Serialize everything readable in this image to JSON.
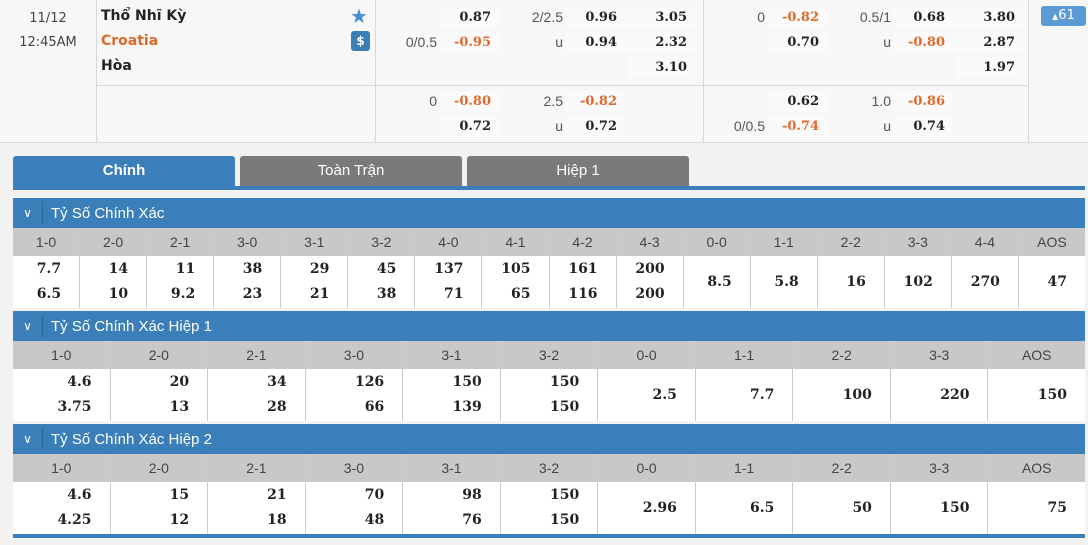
{
  "match": {
    "date": "11/12",
    "time": "12:45AM",
    "home": "Thổ Nhĩ Kỳ",
    "away": "Croatia",
    "draw": "Hòa",
    "more_count": "61"
  },
  "colors": {
    "accent": "#3a7fba",
    "negative": "#e0692a",
    "tab_inactive": "#7a7a7a"
  },
  "icons": {
    "favorite": "star-icon",
    "bet": "dollar-icon",
    "expand": "triangle-up-icon",
    "collapse": "chevron-down-icon"
  },
  "odds": {
    "ft_main": {
      "hdp_line": "0/0.5",
      "hdp_home": "0.87",
      "hdp_away": "-0.95",
      "ou_line": "2/2.5",
      "ou_over": "0.96",
      "ou_under_label": "u",
      "ou_under": "0.94",
      "x1": "3.05",
      "x2": "2.32",
      "xd": "3.10"
    },
    "ft_alt": {
      "hdp_line": "0",
      "hdp_home": "-0.80",
      "hdp_away": "0.72",
      "ou_line": "2.5",
      "ou_over": "-0.82",
      "ou_under_label": "u",
      "ou_under": "0.72"
    },
    "h1_main": {
      "hdp_line": "0",
      "hdp_home": "-0.82",
      "hdp_away": "0.70",
      "ou_line": "0.5/1",
      "ou_over": "0.68",
      "ou_under_label": "u",
      "ou_under": "-0.80",
      "x1": "3.80",
      "x2": "2.87",
      "xd": "1.97"
    },
    "h1_alt": {
      "hdp_line": "0/0.5",
      "hdp_home": "0.62",
      "hdp_away": "-0.74",
      "ou_line": "1.0",
      "ou_over": "-0.86",
      "ou_under_label": "u",
      "ou_under": "0.74"
    }
  },
  "tabs": [
    {
      "label": "Chính",
      "active": true
    },
    {
      "label": "Toàn Trận"
    },
    {
      "label": "Hiệp 1"
    }
  ],
  "sections": [
    {
      "title": "Tỷ Số Chính Xác",
      "columns": [
        {
          "score": "1-0",
          "home": "7.7",
          "away": "6.5"
        },
        {
          "score": "2-0",
          "home": "14",
          "away": "10"
        },
        {
          "score": "2-1",
          "home": "11",
          "away": "9.2"
        },
        {
          "score": "3-0",
          "home": "38",
          "away": "23"
        },
        {
          "score": "3-1",
          "home": "29",
          "away": "21"
        },
        {
          "score": "3-2",
          "home": "45",
          "away": "38"
        },
        {
          "score": "4-0",
          "home": "137",
          "away": "71"
        },
        {
          "score": "4-1",
          "home": "105",
          "away": "65"
        },
        {
          "score": "4-2",
          "home": "161",
          "away": "116"
        },
        {
          "score": "4-3",
          "home": "200",
          "away": "200"
        },
        {
          "score": "0-0",
          "single": "8.5"
        },
        {
          "score": "1-1",
          "single": "5.8"
        },
        {
          "score": "2-2",
          "single": "16"
        },
        {
          "score": "3-3",
          "single": "102"
        },
        {
          "score": "4-4",
          "single": "270"
        },
        {
          "score": "AOS",
          "single": "47"
        }
      ]
    },
    {
      "title": "Tỷ Số Chính Xác Hiệp 1",
      "columns": [
        {
          "score": "1-0",
          "home": "4.6",
          "away": "3.75"
        },
        {
          "score": "2-0",
          "home": "20",
          "away": "13"
        },
        {
          "score": "2-1",
          "home": "34",
          "away": "28"
        },
        {
          "score": "3-0",
          "home": "126",
          "away": "66"
        },
        {
          "score": "3-1",
          "home": "150",
          "away": "139"
        },
        {
          "score": "3-2",
          "home": "150",
          "away": "150"
        },
        {
          "score": "0-0",
          "single": "2.5"
        },
        {
          "score": "1-1",
          "single": "7.7"
        },
        {
          "score": "2-2",
          "single": "100"
        },
        {
          "score": "3-3",
          "single": "220"
        },
        {
          "score": "AOS",
          "single": "150"
        }
      ]
    },
    {
      "title": "Tỷ Số Chính Xác Hiệp 2",
      "columns": [
        {
          "score": "1-0",
          "home": "4.6",
          "away": "4.25"
        },
        {
          "score": "2-0",
          "home": "15",
          "away": "12"
        },
        {
          "score": "2-1",
          "home": "21",
          "away": "18"
        },
        {
          "score": "3-0",
          "home": "70",
          "away": "48"
        },
        {
          "score": "3-1",
          "home": "98",
          "away": "76"
        },
        {
          "score": "3-2",
          "home": "150",
          "away": "150"
        },
        {
          "score": "0-0",
          "single": "2.96"
        },
        {
          "score": "1-1",
          "single": "6.5"
        },
        {
          "score": "2-2",
          "single": "50"
        },
        {
          "score": "3-3",
          "single": "150"
        },
        {
          "score": "AOS",
          "single": "75"
        }
      ]
    }
  ]
}
